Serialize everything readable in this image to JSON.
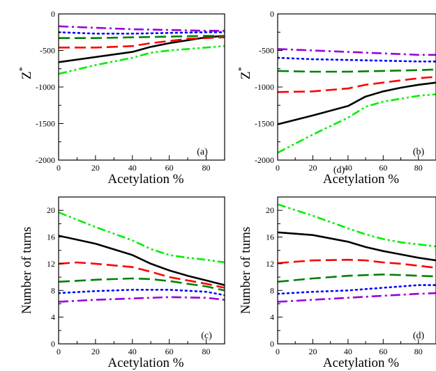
{
  "chart_data": [
    {
      "panel": "(a)",
      "type": "line",
      "xlabel": "Acetylation %",
      "ylabel": "Z*",
      "xlim": [
        0,
        90
      ],
      "ylim": [
        -2000,
        0
      ],
      "xticks": [
        "0",
        "20",
        "40",
        "60",
        "80"
      ],
      "yticks": [
        "-2000",
        "-1500",
        "-1000",
        "-500",
        "0"
      ],
      "tag": "(a)",
      "series": [
        {
          "color": "#000000",
          "dash": "solid",
          "x": [
            0,
            40,
            50,
            60,
            70,
            80,
            90
          ],
          "y": [
            -660,
            -520,
            -450,
            -400,
            -360,
            -320,
            -300
          ]
        },
        {
          "color": "#00ee00",
          "dash": "dashdot2",
          "x": [
            0,
            20,
            40,
            50,
            60,
            70,
            80,
            90
          ],
          "y": [
            -820,
            -700,
            -600,
            -530,
            -500,
            -480,
            -460,
            -440
          ]
        },
        {
          "color": "#ff0000",
          "dash": "dash",
          "x": [
            0,
            20,
            40,
            50,
            60,
            70,
            80,
            90
          ],
          "y": [
            -460,
            -460,
            -440,
            -400,
            -370,
            -340,
            -330,
            -320
          ]
        },
        {
          "color": "#008000",
          "dash": "dash",
          "x": [
            0,
            20,
            40,
            60,
            80,
            90
          ],
          "y": [
            -330,
            -330,
            -320,
            -310,
            -300,
            -300
          ]
        },
        {
          "color": "#0000ff",
          "dash": "dot",
          "x": [
            0,
            20,
            40,
            60,
            80,
            90
          ],
          "y": [
            -250,
            -270,
            -270,
            -260,
            -250,
            -250
          ]
        },
        {
          "color": "#9900dd",
          "dash": "dashdot",
          "x": [
            0,
            20,
            40,
            60,
            80,
            90
          ],
          "y": [
            -170,
            -190,
            -210,
            -220,
            -230,
            -230
          ]
        }
      ]
    },
    {
      "panel": "(b)",
      "type": "line",
      "xlabel": "Acetylation %",
      "ylabel": "Z*",
      "xlim": [
        0,
        90
      ],
      "ylim": [
        -2000,
        0
      ],
      "xticks": [
        "0",
        "20",
        "40",
        "60",
        "80"
      ],
      "yticks": [
        "-2000",
        "-1500",
        "-1000",
        "-500",
        "0"
      ],
      "tag": "(b)",
      "extra_label": "(d)",
      "series": [
        {
          "color": "#000000",
          "dash": "solid",
          "x": [
            0,
            20,
            40,
            50,
            60,
            70,
            80,
            90
          ],
          "y": [
            -1510,
            -1390,
            -1260,
            -1130,
            -1060,
            -1010,
            -970,
            -940
          ]
        },
        {
          "color": "#00ee00",
          "dash": "dashdot2",
          "x": [
            0,
            20,
            40,
            50,
            60,
            70,
            80,
            90
          ],
          "y": [
            -1900,
            -1650,
            -1420,
            -1270,
            -1200,
            -1160,
            -1120,
            -1100
          ]
        },
        {
          "color": "#ff0000",
          "dash": "dash",
          "x": [
            0,
            20,
            40,
            50,
            60,
            70,
            80,
            90
          ],
          "y": [
            -1070,
            -1060,
            -1020,
            -970,
            -940,
            -910,
            -880,
            -860
          ]
        },
        {
          "color": "#008000",
          "dash": "dash",
          "x": [
            0,
            20,
            40,
            60,
            80,
            90
          ],
          "y": [
            -780,
            -790,
            -790,
            -780,
            -770,
            -760
          ]
        },
        {
          "color": "#0000ff",
          "dash": "dot",
          "x": [
            0,
            20,
            40,
            60,
            80,
            90
          ],
          "y": [
            -600,
            -620,
            -630,
            -640,
            -650,
            -650
          ]
        },
        {
          "color": "#9900dd",
          "dash": "dashdot",
          "x": [
            0,
            20,
            40,
            60,
            80,
            90
          ],
          "y": [
            -480,
            -500,
            -520,
            -540,
            -560,
            -560
          ]
        }
      ]
    },
    {
      "panel": "(c)",
      "type": "line",
      "xlabel": "Acetylation %",
      "ylabel": "Number of turns",
      "xlim": [
        0,
        90
      ],
      "ylim": [
        0,
        22
      ],
      "xticks": [
        "0",
        "20",
        "40",
        "60",
        "80"
      ],
      "yticks": [
        "0",
        "4",
        "8",
        "12",
        "16",
        "20"
      ],
      "tag": "(c)",
      "series": [
        {
          "color": "#00ee00",
          "dash": "dashdot2",
          "x": [
            0,
            20,
            40,
            50,
            60,
            70,
            80,
            90
          ],
          "y": [
            19.7,
            17.5,
            15.5,
            14.2,
            13.3,
            12.9,
            12.6,
            12.2
          ]
        },
        {
          "color": "#000000",
          "dash": "solid",
          "x": [
            0,
            20,
            40,
            50,
            60,
            70,
            80,
            90
          ],
          "y": [
            16.2,
            15.0,
            13.3,
            12.0,
            11.0,
            10.2,
            9.5,
            8.8
          ]
        },
        {
          "color": "#ff0000",
          "dash": "dash",
          "x": [
            0,
            10,
            20,
            40,
            50,
            60,
            70,
            80,
            90
          ],
          "y": [
            12.0,
            12.2,
            12.0,
            11.5,
            10.8,
            10.0,
            9.5,
            9.0,
            8.4
          ]
        },
        {
          "color": "#008000",
          "dash": "dash",
          "x": [
            0,
            20,
            40,
            50,
            60,
            70,
            80,
            90
          ],
          "y": [
            9.3,
            9.6,
            9.8,
            9.7,
            9.4,
            9.0,
            8.6,
            8.0
          ]
        },
        {
          "color": "#0000ff",
          "dash": "dot",
          "x": [
            0,
            20,
            40,
            60,
            80,
            90
          ],
          "y": [
            7.6,
            7.9,
            8.1,
            8.1,
            7.8,
            7.3
          ]
        },
        {
          "color": "#9900dd",
          "dash": "dashdot",
          "x": [
            0,
            20,
            40,
            60,
            80,
            90
          ],
          "y": [
            6.3,
            6.6,
            6.8,
            7.0,
            6.9,
            6.6
          ]
        }
      ]
    },
    {
      "panel": "(d)",
      "type": "line",
      "xlabel": "Acetylation %",
      "ylabel": "Number of turns",
      "xlim": [
        0,
        90
      ],
      "ylim": [
        0,
        22
      ],
      "xticks": [
        "0",
        "20",
        "40",
        "60",
        "80"
      ],
      "yticks": [
        "0",
        "4",
        "8",
        "12",
        "16",
        "20"
      ],
      "tag": "(d)",
      "series": [
        {
          "color": "#00ee00",
          "dash": "dashdot2",
          "x": [
            0,
            20,
            40,
            50,
            60,
            70,
            80,
            90
          ],
          "y": [
            20.9,
            19.2,
            17.3,
            16.4,
            15.7,
            15.2,
            14.9,
            14.6
          ]
        },
        {
          "color": "#000000",
          "dash": "solid",
          "x": [
            0,
            20,
            40,
            50,
            60,
            70,
            80,
            90
          ],
          "y": [
            16.7,
            16.3,
            15.3,
            14.5,
            13.9,
            13.4,
            12.9,
            12.5
          ]
        },
        {
          "color": "#ff0000",
          "dash": "dash",
          "x": [
            0,
            20,
            40,
            50,
            60,
            70,
            80,
            90
          ],
          "y": [
            12.1,
            12.5,
            12.6,
            12.5,
            12.2,
            12.0,
            11.7,
            11.4
          ]
        },
        {
          "color": "#008000",
          "dash": "dash",
          "x": [
            0,
            20,
            40,
            50,
            60,
            70,
            80,
            90
          ],
          "y": [
            9.3,
            9.8,
            10.2,
            10.3,
            10.4,
            10.3,
            10.2,
            10.1
          ]
        },
        {
          "color": "#0000ff",
          "dash": "dot",
          "x": [
            0,
            20,
            40,
            60,
            80,
            90
          ],
          "y": [
            7.5,
            7.8,
            8.0,
            8.4,
            8.8,
            8.8
          ]
        },
        {
          "color": "#9900dd",
          "dash": "dashdot",
          "x": [
            0,
            20,
            40,
            60,
            80,
            90
          ],
          "y": [
            6.3,
            6.6,
            6.9,
            7.2,
            7.5,
            7.6
          ]
        }
      ]
    }
  ]
}
